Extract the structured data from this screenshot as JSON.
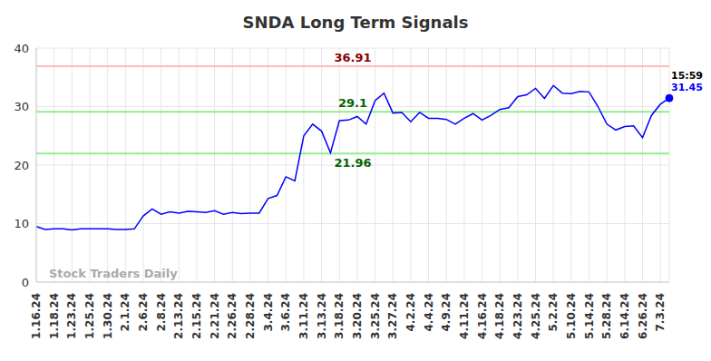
{
  "chart_data": {
    "type": "line",
    "title": "SNDA Long Term Signals",
    "watermark": "Stock Traders Daily",
    "last_time": "15:59",
    "categories": [
      "1.16.24",
      null,
      "1.18.24",
      null,
      "1.23.24",
      null,
      "1.25.24",
      null,
      "1.30.24",
      null,
      "2.1.24",
      null,
      "2.6.24",
      null,
      "2.8.24",
      null,
      "2.13.24",
      null,
      "2.15.24",
      null,
      "2.21.24",
      null,
      "2.26.24",
      null,
      "2.28.24",
      null,
      "3.4.24",
      null,
      "3.6.24",
      null,
      "3.11.24",
      null,
      "3.13.24",
      null,
      "3.18.24",
      null,
      "3.20.24",
      null,
      "3.25.24",
      null,
      "3.27.24",
      null,
      "4.2.24",
      null,
      "4.4.24",
      null,
      "4.9.24",
      null,
      "4.11.24",
      null,
      "4.16.24",
      null,
      "4.18.24",
      null,
      "4.23.24",
      null,
      "4.25.24",
      null,
      "5.2.24",
      null,
      "5.10.24",
      null,
      "5.14.24",
      null,
      "5.28.24",
      null,
      "6.14.24",
      null,
      "6.26.24",
      null,
      "7.3.24",
      null
    ],
    "values": [
      9.5,
      9.0,
      9.1,
      9.1,
      8.9,
      9.1,
      9.1,
      9.1,
      9.1,
      9.0,
      9.0,
      9.1,
      11.3,
      12.5,
      11.6,
      12.0,
      11.8,
      12.1,
      12.0,
      11.9,
      12.2,
      11.6,
      11.9,
      11.7,
      11.8,
      11.8,
      14.3,
      14.8,
      18.0,
      17.3,
      25.0,
      27.0,
      25.8,
      22.1,
      27.6,
      27.7,
      28.3,
      27.0,
      31.0,
      32.3,
      28.9,
      29.0,
      27.4,
      29.0,
      28.0,
      28.0,
      27.8,
      27.0,
      28.0,
      28.8,
      27.7,
      28.5,
      29.5,
      29.8,
      31.7,
      32.0,
      33.1,
      31.4,
      33.6,
      32.3,
      32.2,
      32.6,
      32.5,
      30.0,
      27.0,
      26.0,
      26.6,
      26.7,
      24.7,
      28.5,
      30.4,
      31.45
    ],
    "color": "#0000ff",
    "ylim": [
      0,
      40
    ],
    "yticks": [
      0,
      10,
      20,
      30,
      40
    ],
    "grid": true,
    "reference_lines": [
      {
        "value": 36.91,
        "color": "#ffbbbb",
        "label_color": "#8b0000"
      },
      {
        "value": 29.1,
        "color": "#90ee90",
        "label_color": "#006400"
      },
      {
        "value": 21.96,
        "color": "#90ee90",
        "label_color": "#006400"
      }
    ]
  }
}
